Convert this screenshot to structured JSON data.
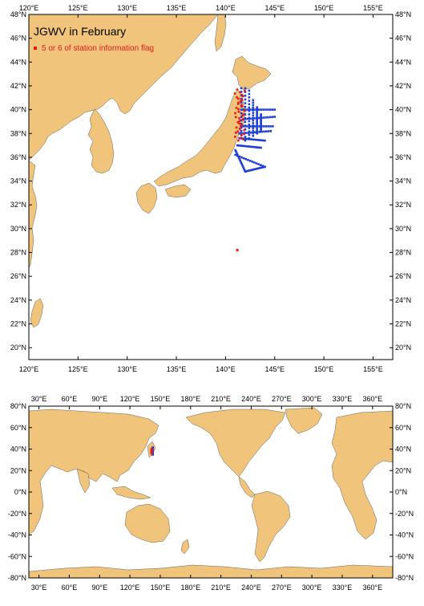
{
  "colors": {
    "land": "#f0c47a",
    "ocean": "#ffffff",
    "frame": "#000000",
    "flagged": "#e41a1c",
    "station": "#1f3fd6"
  },
  "top_map": {
    "title": "JGWV in February",
    "legend_label": "5 or 6 of station information flag",
    "lon_ticks": [
      "120°E",
      "125°E",
      "130°E",
      "135°E",
      "140°E",
      "145°E",
      "150°E",
      "155°E"
    ],
    "lat_ticks": [
      "20°N",
      "22°N",
      "24°N",
      "26°N",
      "28°N",
      "30°N",
      "32°N",
      "34°N",
      "36°N",
      "38°N",
      "40°N",
      "42°N",
      "44°N",
      "46°N",
      "48°N"
    ],
    "extent": {
      "lon": [
        120,
        157
      ],
      "lat": [
        19,
        48
      ]
    },
    "flagged_points": [
      {
        "lon": 141.2,
        "lat": 28.2
      }
    ]
  },
  "bottom_map": {
    "lon_ticks": [
      "30°E",
      "60°E",
      "90°E",
      "120°E",
      "150°E",
      "180°E",
      "210°E",
      "240°E",
      "270°E",
      "300°E",
      "330°E",
      "360°E"
    ],
    "lat_ticks": [
      "80°N",
      "60°N",
      "40°N",
      "20°N",
      "0°N",
      "-20°N",
      "-40°N",
      "-60°N",
      "-80°N"
    ],
    "extent": {
      "lon": [
        20,
        380
      ],
      "lat": [
        -80,
        80
      ]
    }
  }
}
